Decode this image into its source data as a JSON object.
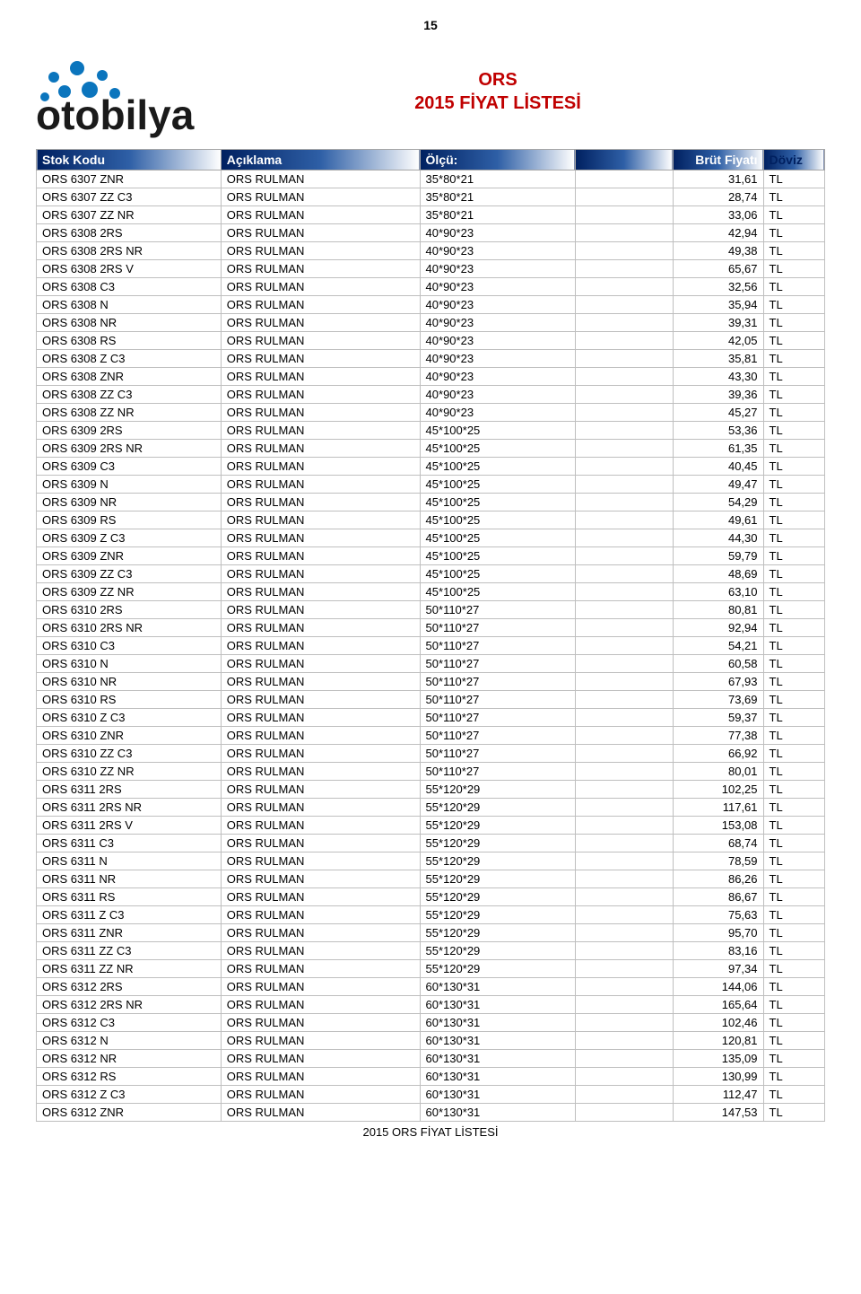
{
  "page_number": "15",
  "title_line1": "ORS",
  "title_line2": "2015 FİYAT LİSTESİ",
  "footer": "2015 ORS FİYAT LİSTESİ",
  "logo": {
    "word": "otobilya",
    "word_color": "#1a1a1a",
    "dot_color": "#0b75bd"
  },
  "colors": {
    "title": "#c00000",
    "header_grad_start": "#002060",
    "header_grad_mid": "#2e5fa6",
    "header_grad_end": "#ffffff",
    "border": "#bfbfbf",
    "text": "#000000"
  },
  "table": {
    "columns": [
      "Stok Kodu",
      "Açıklama",
      "Ölçü:",
      "",
      "Brüt Fiyatı",
      "Döviz"
    ],
    "rows": [
      [
        "ORS 6307 ZNR",
        "ORS RULMAN",
        "35*80*21",
        "",
        "31,61",
        "TL"
      ],
      [
        "ORS 6307 ZZ C3",
        "ORS RULMAN",
        "35*80*21",
        "",
        "28,74",
        "TL"
      ],
      [
        "ORS 6307 ZZ NR",
        "ORS RULMAN",
        "35*80*21",
        "",
        "33,06",
        "TL"
      ],
      [
        "ORS 6308 2RS",
        "ORS RULMAN",
        "40*90*23",
        "",
        "42,94",
        "TL"
      ],
      [
        "ORS 6308 2RS NR",
        "ORS RULMAN",
        "40*90*23",
        "",
        "49,38",
        "TL"
      ],
      [
        "ORS 6308 2RS V",
        "ORS RULMAN",
        "40*90*23",
        "",
        "65,67",
        "TL"
      ],
      [
        "ORS 6308 C3",
        "ORS RULMAN",
        "40*90*23",
        "",
        "32,56",
        "TL"
      ],
      [
        "ORS 6308 N",
        "ORS RULMAN",
        "40*90*23",
        "",
        "35,94",
        "TL"
      ],
      [
        "ORS 6308 NR",
        "ORS RULMAN",
        "40*90*23",
        "",
        "39,31",
        "TL"
      ],
      [
        "ORS 6308 RS",
        "ORS RULMAN",
        "40*90*23",
        "",
        "42,05",
        "TL"
      ],
      [
        "ORS 6308 Z C3",
        "ORS RULMAN",
        "40*90*23",
        "",
        "35,81",
        "TL"
      ],
      [
        "ORS 6308 ZNR",
        "ORS RULMAN",
        "40*90*23",
        "",
        "43,30",
        "TL"
      ],
      [
        "ORS 6308 ZZ C3",
        "ORS RULMAN",
        "40*90*23",
        "",
        "39,36",
        "TL"
      ],
      [
        "ORS 6308 ZZ NR",
        "ORS RULMAN",
        "40*90*23",
        "",
        "45,27",
        "TL"
      ],
      [
        "ORS 6309 2RS",
        "ORS RULMAN",
        "45*100*25",
        "",
        "53,36",
        "TL"
      ],
      [
        "ORS 6309 2RS NR",
        "ORS RULMAN",
        "45*100*25",
        "",
        "61,35",
        "TL"
      ],
      [
        "ORS 6309 C3",
        "ORS RULMAN",
        "45*100*25",
        "",
        "40,45",
        "TL"
      ],
      [
        "ORS 6309 N",
        "ORS RULMAN",
        "45*100*25",
        "",
        "49,47",
        "TL"
      ],
      [
        "ORS 6309 NR",
        "ORS RULMAN",
        "45*100*25",
        "",
        "54,29",
        "TL"
      ],
      [
        "ORS 6309 RS",
        "ORS RULMAN",
        "45*100*25",
        "",
        "49,61",
        "TL"
      ],
      [
        "ORS 6309 Z C3",
        "ORS RULMAN",
        "45*100*25",
        "",
        "44,30",
        "TL"
      ],
      [
        "ORS 6309 ZNR",
        "ORS RULMAN",
        "45*100*25",
        "",
        "59,79",
        "TL"
      ],
      [
        "ORS 6309 ZZ C3",
        "ORS RULMAN",
        "45*100*25",
        "",
        "48,69",
        "TL"
      ],
      [
        "ORS 6309 ZZ NR",
        "ORS RULMAN",
        "45*100*25",
        "",
        "63,10",
        "TL"
      ],
      [
        "ORS 6310 2RS",
        "ORS RULMAN",
        "50*110*27",
        "",
        "80,81",
        "TL"
      ],
      [
        "ORS 6310 2RS NR",
        "ORS RULMAN",
        "50*110*27",
        "",
        "92,94",
        "TL"
      ],
      [
        "ORS 6310 C3",
        "ORS RULMAN",
        "50*110*27",
        "",
        "54,21",
        "TL"
      ],
      [
        "ORS 6310 N",
        "ORS RULMAN",
        "50*110*27",
        "",
        "60,58",
        "TL"
      ],
      [
        "ORS 6310 NR",
        "ORS RULMAN",
        "50*110*27",
        "",
        "67,93",
        "TL"
      ],
      [
        "ORS 6310 RS",
        "ORS RULMAN",
        "50*110*27",
        "",
        "73,69",
        "TL"
      ],
      [
        "ORS 6310 Z C3",
        "ORS RULMAN",
        "50*110*27",
        "",
        "59,37",
        "TL"
      ],
      [
        "ORS 6310 ZNR",
        "ORS RULMAN",
        "50*110*27",
        "",
        "77,38",
        "TL"
      ],
      [
        "ORS 6310 ZZ C3",
        "ORS RULMAN",
        "50*110*27",
        "",
        "66,92",
        "TL"
      ],
      [
        "ORS 6310 ZZ NR",
        "ORS RULMAN",
        "50*110*27",
        "",
        "80,01",
        "TL"
      ],
      [
        "ORS 6311 2RS",
        "ORS RULMAN",
        "55*120*29",
        "",
        "102,25",
        "TL"
      ],
      [
        "ORS 6311 2RS NR",
        "ORS RULMAN",
        "55*120*29",
        "",
        "117,61",
        "TL"
      ],
      [
        "ORS 6311 2RS V",
        "ORS RULMAN",
        "55*120*29",
        "",
        "153,08",
        "TL"
      ],
      [
        "ORS 6311 C3",
        "ORS RULMAN",
        "55*120*29",
        "",
        "68,74",
        "TL"
      ],
      [
        "ORS 6311 N",
        "ORS RULMAN",
        "55*120*29",
        "",
        "78,59",
        "TL"
      ],
      [
        "ORS 6311 NR",
        "ORS RULMAN",
        "55*120*29",
        "",
        "86,26",
        "TL"
      ],
      [
        "ORS 6311 RS",
        "ORS RULMAN",
        "55*120*29",
        "",
        "86,67",
        "TL"
      ],
      [
        "ORS 6311 Z C3",
        "ORS RULMAN",
        "55*120*29",
        "",
        "75,63",
        "TL"
      ],
      [
        "ORS 6311 ZNR",
        "ORS RULMAN",
        "55*120*29",
        "",
        "95,70",
        "TL"
      ],
      [
        "ORS 6311 ZZ C3",
        "ORS RULMAN",
        "55*120*29",
        "",
        "83,16",
        "TL"
      ],
      [
        "ORS 6311 ZZ NR",
        "ORS RULMAN",
        "55*120*29",
        "",
        "97,34",
        "TL"
      ],
      [
        "ORS 6312 2RS",
        "ORS RULMAN",
        "60*130*31",
        "",
        "144,06",
        "TL"
      ],
      [
        "ORS 6312 2RS NR",
        "ORS RULMAN",
        "60*130*31",
        "",
        "165,64",
        "TL"
      ],
      [
        "ORS 6312 C3",
        "ORS RULMAN",
        "60*130*31",
        "",
        "102,46",
        "TL"
      ],
      [
        "ORS 6312 N",
        "ORS RULMAN",
        "60*130*31",
        "",
        "120,81",
        "TL"
      ],
      [
        "ORS 6312 NR",
        "ORS RULMAN",
        "60*130*31",
        "",
        "135,09",
        "TL"
      ],
      [
        "ORS 6312 RS",
        "ORS RULMAN",
        "60*130*31",
        "",
        "130,99",
        "TL"
      ],
      [
        "ORS 6312 Z C3",
        "ORS RULMAN",
        "60*130*31",
        "",
        "112,47",
        "TL"
      ],
      [
        "ORS 6312 ZNR",
        "ORS RULMAN",
        "60*130*31",
        "",
        "147,53",
        "TL"
      ]
    ]
  }
}
